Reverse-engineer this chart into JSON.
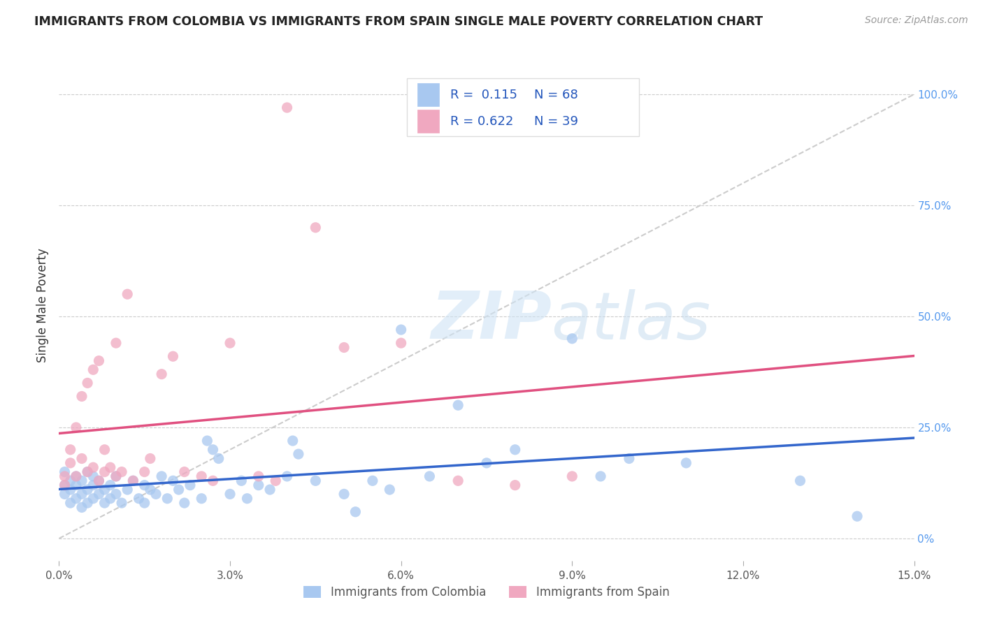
{
  "title": "IMMIGRANTS FROM COLOMBIA VS IMMIGRANTS FROM SPAIN SINGLE MALE POVERTY CORRELATION CHART",
  "source": "Source: ZipAtlas.com",
  "ylabel": "Single Male Poverty",
  "right_yticks": [
    "0%",
    "25.0%",
    "50.0%",
    "75.0%",
    "100.0%"
  ],
  "right_ytick_vals": [
    0.0,
    0.25,
    0.5,
    0.75,
    1.0
  ],
  "xlim": [
    0.0,
    0.15
  ],
  "ylim": [
    -0.05,
    1.1
  ],
  "colombia_color": "#a8c8f0",
  "spain_color": "#f0a8c0",
  "colombia_R": 0.115,
  "colombia_N": 68,
  "spain_R": 0.622,
  "spain_N": 39,
  "diagonal_color": "#cccccc",
  "colombia_line_color": "#3366cc",
  "spain_line_color": "#e05080",
  "legend_label_colombia": "Immigrants from Colombia",
  "legend_label_spain": "Immigrants from Spain",
  "colombia_scatter": [
    [
      0.001,
      0.15
    ],
    [
      0.001,
      0.12
    ],
    [
      0.001,
      0.1
    ],
    [
      0.002,
      0.13
    ],
    [
      0.002,
      0.08
    ],
    [
      0.002,
      0.11
    ],
    [
      0.003,
      0.14
    ],
    [
      0.003,
      0.09
    ],
    [
      0.003,
      0.12
    ],
    [
      0.004,
      0.1
    ],
    [
      0.004,
      0.13
    ],
    [
      0.004,
      0.07
    ],
    [
      0.005,
      0.11
    ],
    [
      0.005,
      0.15
    ],
    [
      0.005,
      0.08
    ],
    [
      0.006,
      0.12
    ],
    [
      0.006,
      0.09
    ],
    [
      0.006,
      0.14
    ],
    [
      0.007,
      0.1
    ],
    [
      0.007,
      0.13
    ],
    [
      0.008,
      0.08
    ],
    [
      0.008,
      0.11
    ],
    [
      0.009,
      0.12
    ],
    [
      0.009,
      0.09
    ],
    [
      0.01,
      0.14
    ],
    [
      0.01,
      0.1
    ],
    [
      0.011,
      0.08
    ],
    [
      0.012,
      0.11
    ],
    [
      0.013,
      0.13
    ],
    [
      0.014,
      0.09
    ],
    [
      0.015,
      0.12
    ],
    [
      0.015,
      0.08
    ],
    [
      0.016,
      0.11
    ],
    [
      0.017,
      0.1
    ],
    [
      0.018,
      0.14
    ],
    [
      0.019,
      0.09
    ],
    [
      0.02,
      0.13
    ],
    [
      0.021,
      0.11
    ],
    [
      0.022,
      0.08
    ],
    [
      0.023,
      0.12
    ],
    [
      0.025,
      0.09
    ],
    [
      0.026,
      0.22
    ],
    [
      0.027,
      0.2
    ],
    [
      0.028,
      0.18
    ],
    [
      0.03,
      0.1
    ],
    [
      0.032,
      0.13
    ],
    [
      0.033,
      0.09
    ],
    [
      0.035,
      0.12
    ],
    [
      0.037,
      0.11
    ],
    [
      0.04,
      0.14
    ],
    [
      0.041,
      0.22
    ],
    [
      0.042,
      0.19
    ],
    [
      0.045,
      0.13
    ],
    [
      0.05,
      0.1
    ],
    [
      0.052,
      0.06
    ],
    [
      0.055,
      0.13
    ],
    [
      0.058,
      0.11
    ],
    [
      0.06,
      0.47
    ],
    [
      0.065,
      0.14
    ],
    [
      0.07,
      0.3
    ],
    [
      0.075,
      0.17
    ],
    [
      0.08,
      0.2
    ],
    [
      0.09,
      0.45
    ],
    [
      0.095,
      0.14
    ],
    [
      0.1,
      0.18
    ],
    [
      0.11,
      0.17
    ],
    [
      0.13,
      0.13
    ],
    [
      0.14,
      0.05
    ]
  ],
  "spain_scatter": [
    [
      0.001,
      0.14
    ],
    [
      0.001,
      0.12
    ],
    [
      0.002,
      0.2
    ],
    [
      0.002,
      0.17
    ],
    [
      0.003,
      0.25
    ],
    [
      0.003,
      0.14
    ],
    [
      0.004,
      0.32
    ],
    [
      0.004,
      0.18
    ],
    [
      0.005,
      0.35
    ],
    [
      0.005,
      0.15
    ],
    [
      0.006,
      0.38
    ],
    [
      0.006,
      0.16
    ],
    [
      0.007,
      0.4
    ],
    [
      0.007,
      0.13
    ],
    [
      0.008,
      0.2
    ],
    [
      0.008,
      0.15
    ],
    [
      0.009,
      0.16
    ],
    [
      0.01,
      0.44
    ],
    [
      0.01,
      0.14
    ],
    [
      0.011,
      0.15
    ],
    [
      0.012,
      0.55
    ],
    [
      0.013,
      0.13
    ],
    [
      0.015,
      0.15
    ],
    [
      0.016,
      0.18
    ],
    [
      0.018,
      0.37
    ],
    [
      0.02,
      0.41
    ],
    [
      0.022,
      0.15
    ],
    [
      0.025,
      0.14
    ],
    [
      0.027,
      0.13
    ],
    [
      0.03,
      0.44
    ],
    [
      0.035,
      0.14
    ],
    [
      0.038,
      0.13
    ],
    [
      0.04,
      0.97
    ],
    [
      0.045,
      0.7
    ],
    [
      0.05,
      0.43
    ],
    [
      0.06,
      0.44
    ],
    [
      0.07,
      0.13
    ],
    [
      0.08,
      0.12
    ],
    [
      0.09,
      0.14
    ]
  ]
}
